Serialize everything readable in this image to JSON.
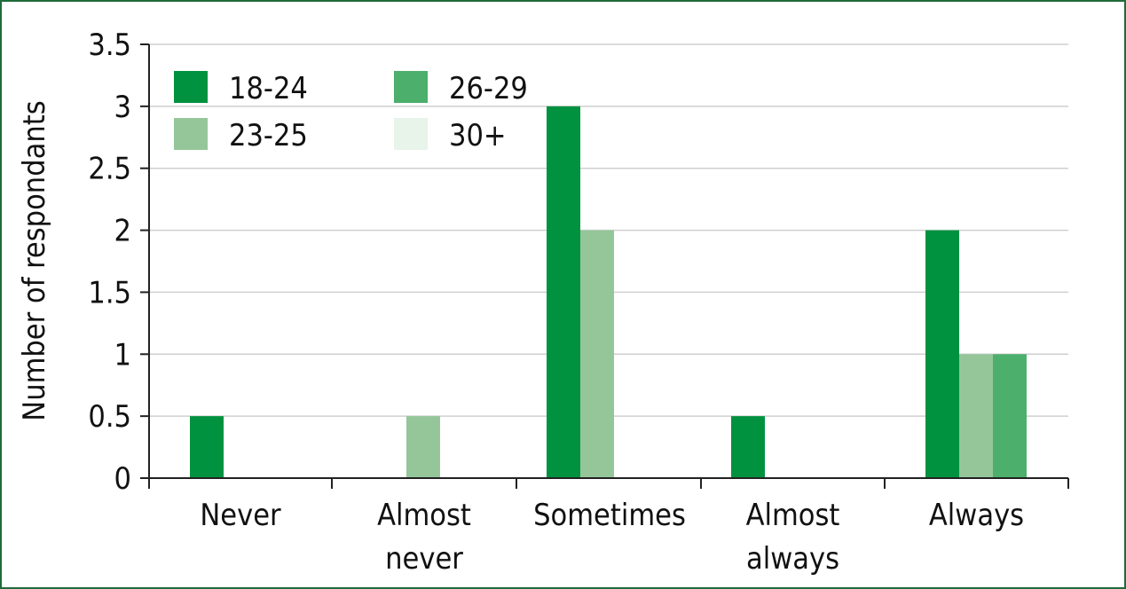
{
  "chart_data": {
    "type": "bar",
    "title": "",
    "xlabel": "",
    "ylabel": "Number of respondants",
    "ylim": [
      0,
      3.5
    ],
    "yticks": [
      "0",
      "0.5",
      "1",
      "1.5",
      "2",
      "2.5",
      "3",
      "3.5"
    ],
    "yticks_values": [
      0,
      0.5,
      1,
      1.5,
      2,
      2.5,
      3,
      3.5
    ],
    "grid": true,
    "legend_position": "top-left",
    "categories": [
      [
        "Never"
      ],
      [
        "Almost",
        "never"
      ],
      [
        "Sometimes"
      ],
      [
        "Almost",
        "always"
      ],
      [
        "Always"
      ]
    ],
    "series": [
      {
        "name": "18-24",
        "color": "#00923f",
        "values": [
          0.5,
          0,
          3,
          0.5,
          2
        ]
      },
      {
        "name": "23-25",
        "color": "#94c69a",
        "values": [
          0,
          0.5,
          2,
          0,
          1
        ]
      },
      {
        "name": "26-29",
        "color": "#4caf6b",
        "values": [
          0,
          0,
          0,
          0,
          1
        ]
      },
      {
        "name": "30+",
        "color": "#e8f3ea",
        "values": [
          0,
          0,
          0,
          0,
          0
        ]
      }
    ]
  }
}
